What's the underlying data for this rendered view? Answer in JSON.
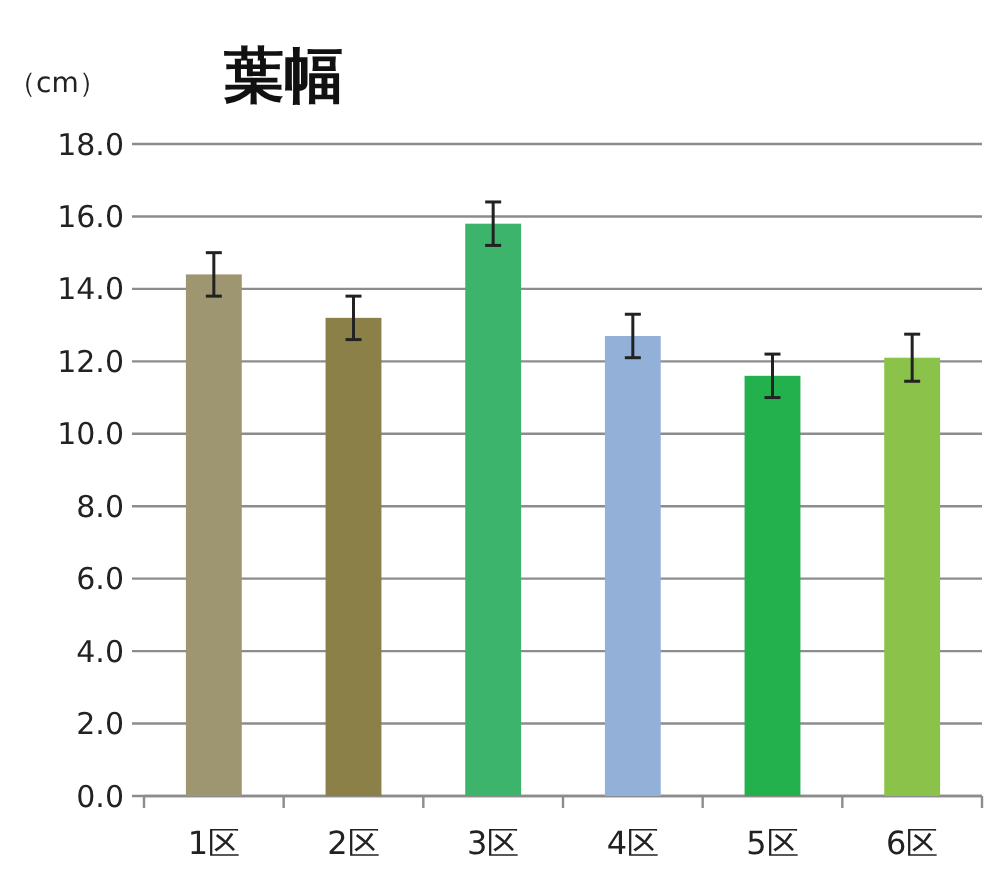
{
  "chart_data": {
    "type": "bar",
    "title": "葉幅",
    "ylabel": "（cm）",
    "categories": [
      "1区",
      "2区",
      "3区",
      "4区",
      "5区",
      "6区"
    ],
    "values": [
      14.4,
      13.2,
      15.8,
      12.7,
      11.6,
      12.1
    ],
    "errors": [
      0.6,
      0.6,
      0.6,
      0.6,
      0.6,
      0.65
    ],
    "colors": [
      "#9d9670",
      "#8b8148",
      "#3cb46c",
      "#93b1d8",
      "#22b14c",
      "#8bc34a"
    ],
    "ylim": [
      0,
      18
    ],
    "yticks": [
      {
        "value": 0,
        "label": "0.0"
      },
      {
        "value": 2,
        "label": "2.0"
      },
      {
        "value": 4,
        "label": "4.0"
      },
      {
        "value": 6,
        "label": "6.0"
      },
      {
        "value": 8,
        "label": "8.0"
      },
      {
        "value": 10,
        "label": "10.0"
      },
      {
        "value": 12,
        "label": "12.0"
      },
      {
        "value": 14,
        "label": "14.0"
      },
      {
        "value": 16,
        "label": "16.0"
      },
      {
        "value": 18,
        "label": "18.0"
      }
    ],
    "grid": true
  }
}
